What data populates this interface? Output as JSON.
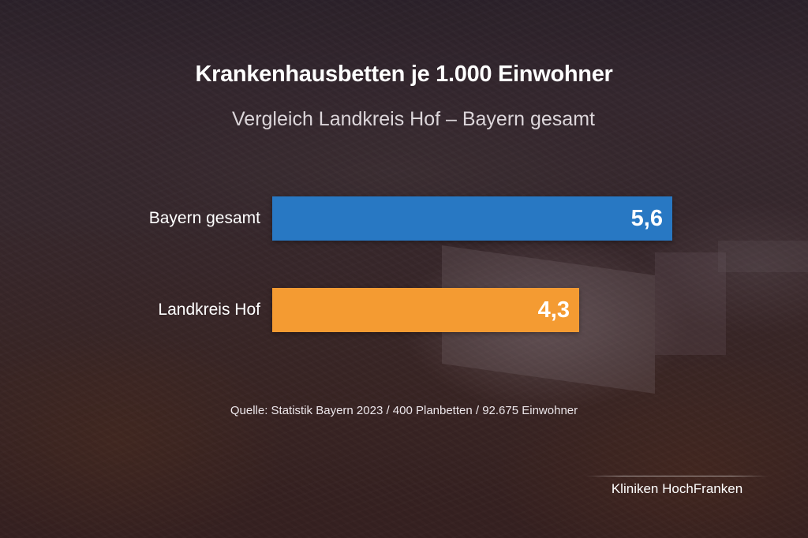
{
  "chart_data": {
    "type": "bar",
    "orientation": "horizontal",
    "title": "Krankenhausbetten je 1.000 Einwohner",
    "subtitle": "Vergleich Landkreis Hof – Bayern gesamt",
    "categories": [
      "Bayern gesamt",
      "Landkreis Hof"
    ],
    "values": [
      5.6,
      4.3
    ],
    "value_labels": [
      "5,6",
      "4,3"
    ],
    "colors": [
      "#2878c3",
      "#f49b32"
    ],
    "xlabel": "",
    "ylabel": "",
    "grid": false,
    "legend": "none",
    "annotations": [
      "Quelle: Statistik Bayern 2023 / 400 Planbetten / 92.675 Einwohner"
    ]
  },
  "header": {
    "title": "Krankenhausbetten je 1.000 Einwohner",
    "subtitle": "Vergleich Landkreis Hof – Bayern gesamt"
  },
  "bars": [
    {
      "label": "Bayern gesamt",
      "value_label": "5,6",
      "value": 5.6,
      "color": "#2878c3"
    },
    {
      "label": "Landkreis Hof",
      "value_label": "4,3",
      "value": 4.3,
      "color": "#f49b32"
    }
  ],
  "footer": {
    "source": "Quelle: Statistik Bayern 2023 / 400 Planbetten / 92.675 Einwohner",
    "brand": "Kliniken HochFranken"
  }
}
